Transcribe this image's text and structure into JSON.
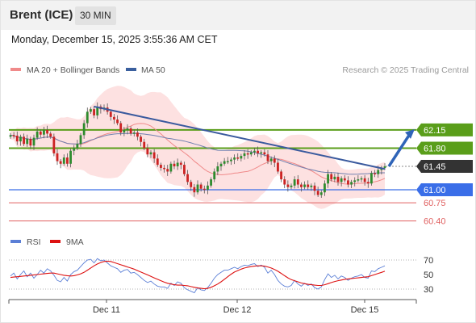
{
  "header": {
    "instrument": "Brent (ICE)",
    "timeframe": "30 MIN",
    "datetime": "Monday, December 15, 2025 3:55:36 AM CET"
  },
  "legend": {
    "items": [
      {
        "label": "MA 20 + Bollinger Bands",
        "color": "#f08a8a"
      },
      {
        "label": "MA 50",
        "color": "#3a5f9e"
      }
    ],
    "credit": "Research © 2025 Trading Central"
  },
  "chart_data": [
    {
      "type": "candlestick",
      "x_labels": [
        "Dec 11",
        "Dec 12",
        "Dec 15"
      ],
      "ylim": [
        60.3,
        62.45
      ],
      "levels": [
        {
          "value": 62.15,
          "label": "62.15",
          "style": "resistance",
          "color": "#5a9e1a"
        },
        {
          "value": 61.8,
          "label": "61.80",
          "style": "resistance",
          "color": "#5a9e1a"
        },
        {
          "value": 61.45,
          "label": "61.45",
          "style": "last",
          "color": "#333333"
        },
        {
          "value": 61.0,
          "label": "61.00",
          "style": "support",
          "color": "#3a6ee8"
        },
        {
          "value": 60.75,
          "label": "60.75",
          "style": "target",
          "color": "#e06060"
        },
        {
          "value": 60.4,
          "label": "60.40",
          "style": "target",
          "color": "#e06060"
        }
      ],
      "closes": [
        62.05,
        62.04,
        61.93,
        62.02,
        61.88,
        61.98,
        61.85,
        62.0,
        62.12,
        62.06,
        62.15,
        62.08,
        62.02,
        61.7,
        61.55,
        61.5,
        61.62,
        61.5,
        61.75,
        61.8,
        61.88,
        62.05,
        62.28,
        62.5,
        62.55,
        62.43,
        62.6,
        62.55,
        62.58,
        62.5,
        62.4,
        62.35,
        62.28,
        62.1,
        62.15,
        62.18,
        62.08,
        62.1,
        62.02,
        61.92,
        61.8,
        61.68,
        61.72,
        61.6,
        61.48,
        61.42,
        61.4,
        61.35,
        61.5,
        61.45,
        61.52,
        61.48,
        61.3,
        61.15,
        61.05,
        60.95,
        61.1,
        61.02,
        61.0,
        61.08,
        61.2,
        61.35,
        61.45,
        61.5,
        61.55,
        61.55,
        61.58,
        61.62,
        61.6,
        61.65,
        61.7,
        61.68,
        61.72,
        61.75,
        61.7,
        61.72,
        61.68,
        61.55,
        61.6,
        61.52,
        61.35,
        61.2,
        61.1,
        61.05,
        61.08,
        61.2,
        61.1,
        61.05,
        61.1,
        61.05,
        61.08,
        60.98,
        60.9,
        60.95,
        61.12,
        61.3,
        61.2,
        61.25,
        61.15,
        61.22,
        61.18,
        61.1,
        61.15,
        61.18,
        61.2,
        61.22,
        61.15,
        61.12,
        61.32,
        61.3,
        61.38,
        61.42,
        61.45
      ],
      "trendline": {
        "from": 62.6,
        "to": 61.4
      },
      "arrow": {
        "from": 61.45,
        "to": 62.15
      }
    },
    {
      "type": "line",
      "legend": [
        {
          "label": "RSI",
          "color": "#5b7fd6"
        },
        {
          "label": "9MA",
          "color": "#dd1111"
        }
      ],
      "y_ticks": [
        70,
        50,
        30
      ],
      "ylim": [
        20,
        80
      ],
      "rsi": [
        48,
        52,
        44,
        50,
        55,
        47,
        52,
        45,
        50,
        56,
        52,
        58,
        55,
        49,
        42,
        40,
        46,
        41,
        50,
        54,
        56,
        61,
        66,
        70,
        71,
        66,
        72,
        69,
        70,
        66,
        62,
        60,
        58,
        53,
        56,
        57,
        52,
        53,
        50,
        46,
        42,
        39,
        41,
        37,
        34,
        33,
        33,
        31,
        38,
        35,
        40,
        38,
        32,
        29,
        27,
        25,
        32,
        29,
        28,
        32,
        38,
        45,
        50,
        53,
        56,
        56,
        58,
        60,
        58,
        61,
        63,
        62,
        64,
        65,
        61,
        63,
        60,
        52,
        56,
        50,
        42,
        37,
        34,
        33,
        35,
        42,
        37,
        34,
        38,
        35,
        37,
        32,
        30,
        33,
        43,
        51,
        46,
        49,
        44,
        48,
        46,
        42,
        45,
        47,
        48,
        50,
        46,
        45,
        55,
        54,
        58,
        60,
        62
      ],
      "ma9": [
        46,
        46.5,
        47,
        47.5,
        48,
        48.5,
        49,
        49.5,
        50,
        50.6,
        51,
        51.5,
        52,
        52,
        51,
        50,
        49,
        48.5,
        48,
        48.5,
        49.5,
        51,
        53,
        56,
        59,
        62,
        64.5,
        66.5,
        68,
        68.5,
        68,
        66.5,
        65,
        63.5,
        62,
        60.5,
        59,
        57.5,
        55.5,
        53.5,
        51.5,
        49.5,
        47.5,
        45.5,
        43.5,
        41.5,
        39.5,
        38,
        37,
        36,
        35.5,
        35.5,
        35,
        34.5,
        33.5,
        32.5,
        31.5,
        31,
        30.5,
        31,
        32.5,
        34.5,
        37,
        40,
        43.5,
        47,
        50.5,
        53.5,
        55.5,
        57.5,
        59,
        60,
        61,
        61.5,
        62,
        62,
        61.5,
        60.5,
        59,
        57,
        54.5,
        51.5,
        48.5,
        45.5,
        43,
        41.5,
        40,
        38.5,
        37.5,
        36.5,
        36,
        35.5,
        35,
        35,
        36,
        37.5,
        39,
        40.5,
        41.5,
        42.5,
        43.5,
        44,
        44.5,
        45,
        45.5,
        46,
        46.5,
        47,
        48.5,
        50,
        51.5,
        53,
        54.5
      ]
    }
  ]
}
